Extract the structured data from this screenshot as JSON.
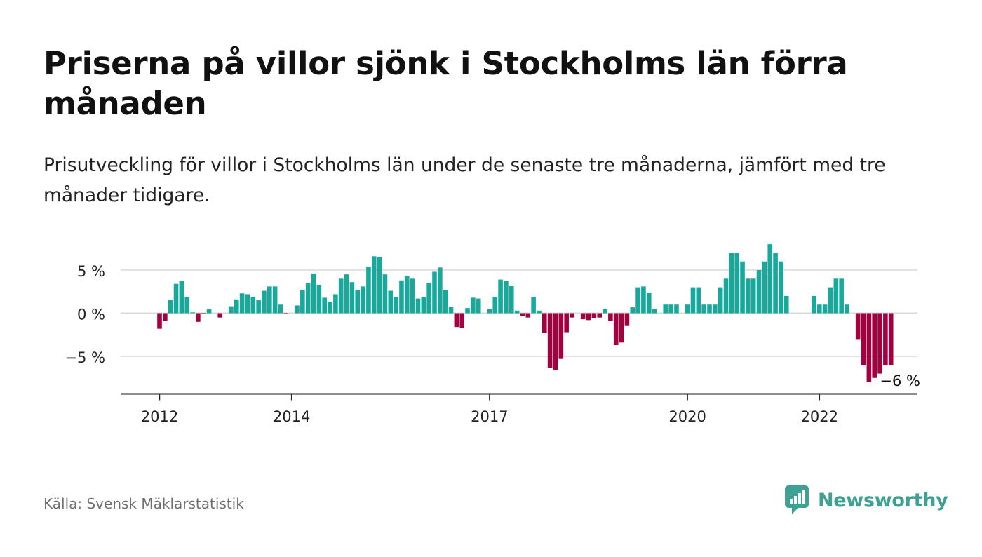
{
  "header": {
    "title": "Priserna på villor sjönk i Stockholms län förra månaden",
    "subtitle": "Prisutveckling för villor i Stockholms län under de senaste tre månaderna, jämfört med tre månader tidigare."
  },
  "footer": {
    "source": "Källa: Svensk Mäklarstatistik",
    "brand": "Newsworthy"
  },
  "colors": {
    "positive": "#19a89c",
    "negative": "#a3003f",
    "grid": "#d9d9d9",
    "axis": "#222222",
    "brand": "#3fa193"
  },
  "chart_data": {
    "type": "bar",
    "title": "Priserna på villor sjönk i Stockholms län förra månaden",
    "subtitle": "Prisutveckling för villor i Stockholms län under de senaste tre månaderna, jämfört med tre månader tidigare.",
    "unit": "%",
    "start": "2012-01",
    "frequency": "monthly",
    "ylim": [
      -9,
      8.5
    ],
    "yticks": [
      {
        "value": 5,
        "label": "5 %"
      },
      {
        "value": 0,
        "label": "0 %"
      },
      {
        "value": -5,
        "label": "−5 %"
      }
    ],
    "xticks": [
      {
        "label": "2012",
        "index": 0
      },
      {
        "label": "2014",
        "index": 24
      },
      {
        "label": "2017",
        "index": 60
      },
      {
        "label": "2020",
        "index": 96
      },
      {
        "label": "2022",
        "index": 120
      }
    ],
    "grid": true,
    "legend": "none",
    "annotation": {
      "label": "−6 %",
      "index": 132
    },
    "values": [
      -1.8,
      -0.9,
      1.5,
      3.4,
      3.7,
      1.9,
      0.1,
      -1.0,
      -0.1,
      0.5,
      0.0,
      -0.5,
      0.0,
      0.8,
      1.6,
      2.3,
      2.2,
      1.9,
      1.5,
      2.6,
      3.1,
      3.1,
      1.0,
      -0.1,
      0.0,
      0.9,
      2.7,
      3.5,
      4.6,
      3.3,
      1.8,
      1.3,
      2.2,
      4.0,
      4.5,
      3.6,
      2.7,
      3.1,
      5.4,
      6.6,
      6.5,
      4.5,
      2.6,
      1.9,
      3.8,
      4.3,
      4.0,
      1.7,
      1.9,
      3.5,
      4.8,
      5.3,
      2.7,
      0.7,
      -1.6,
      -1.7,
      0.6,
      1.8,
      1.7,
      0.0,
      0.5,
      1.9,
      3.9,
      3.7,
      3.2,
      0.3,
      -0.3,
      -0.5,
      1.9,
      0.3,
      -2.3,
      -6.3,
      -6.6,
      -5.3,
      -2.2,
      -0.5,
      0.0,
      -0.7,
      -0.8,
      -0.6,
      -0.5,
      0.5,
      -0.9,
      -3.7,
      -3.4,
      -1.4,
      0.7,
      3.0,
      3.1,
      2.4,
      0.5,
      0.0,
      1.0,
      1.0,
      1.0,
      0.0,
      1.0,
      3.0,
      3.0,
      1.0,
      1.0,
      1.0,
      3.0,
      4.0,
      7.0,
      7.0,
      6.0,
      4.0,
      4.0,
      5.0,
      6.0,
      8.0,
      7.0,
      6.0,
      2.0,
      0.0,
      0.0,
      0.0,
      0.0,
      2.0,
      1.0,
      1.0,
      3.0,
      4.0,
      4.0,
      1.0,
      0.0,
      -3.0,
      -6.0,
      -8.0,
      -7.5,
      -7.0,
      -6.0,
      -6.0
    ]
  }
}
